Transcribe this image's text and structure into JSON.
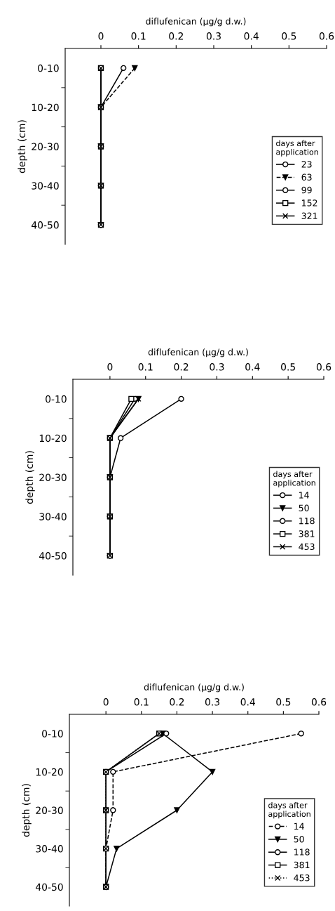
{
  "chart_data": [
    {
      "type": "line",
      "orientation": "horizontal",
      "xlabel": "diflufenican (μg/g d.w.)",
      "ylabel": "depth (cm)",
      "legend_title": "days after\napplication",
      "legend": "lower right",
      "xlim": [
        -0.095,
        0.6
      ],
      "xticks": [
        0,
        0.1,
        0.2,
        0.3,
        0.4,
        0.5,
        0.6
      ],
      "categories": [
        "0-10",
        "10-20",
        "20-30",
        "30-40",
        "40-50"
      ],
      "series": [
        {
          "name": "23",
          "color": "#000000",
          "marker": "circle",
          "line_style": "solid",
          "values": [
            0.06,
            0,
            0,
            0,
            0
          ]
        },
        {
          "name": "63",
          "color": "#000000",
          "marker": "triangle",
          "line_style": "dashed",
          "values": [
            0.09,
            0,
            0,
            0,
            0
          ]
        },
        {
          "name": "99",
          "color": "#000000",
          "marker": "circle",
          "line_style": "solid",
          "values": [
            0,
            0,
            0,
            0,
            0
          ]
        },
        {
          "name": "152",
          "color": "#000000",
          "marker": "square",
          "line_style": "solid",
          "values": [
            0,
            0,
            0,
            0,
            0
          ]
        },
        {
          "name": "321",
          "color": "#000000",
          "marker": "cross",
          "line_style": "solid",
          "values": [
            0,
            0,
            0,
            0,
            0
          ]
        }
      ]
    },
    {
      "type": "line",
      "orientation": "horizontal",
      "xlabel": "diflufenican (μg/g d.w.)",
      "ylabel": "depth (cm)",
      "legend_title": "days after\napplication",
      "legend": "lower right",
      "xlim": [
        -0.104,
        0.6
      ],
      "xticks": [
        0,
        0.1,
        0.2,
        0.3,
        0.4,
        0.5,
        0.6
      ],
      "categories": [
        "0-10",
        "10-20",
        "20-30",
        "30-40",
        "40-50"
      ],
      "series": [
        {
          "name": "14",
          "color": "#000000",
          "marker": "circle",
          "line_style": "solid",
          "values": [
            0.2,
            0.03,
            0,
            0,
            0
          ]
        },
        {
          "name": "50",
          "color": "#000000",
          "marker": "triangle",
          "line_style": "solid",
          "values": [
            0.08,
            0,
            0,
            0,
            0
          ]
        },
        {
          "name": "118",
          "color": "#000000",
          "marker": "circle",
          "line_style": "solid",
          "values": [
            0.07,
            0,
            0,
            0,
            0
          ]
        },
        {
          "name": "381",
          "color": "#000000",
          "marker": "square",
          "line_style": "solid",
          "values": [
            0.06,
            0,
            0,
            0,
            0
          ]
        },
        {
          "name": "453",
          "color": "#000000",
          "marker": "cross",
          "line_style": "solid",
          "values": [
            0.08,
            0,
            0,
            0,
            0
          ]
        }
      ]
    },
    {
      "type": "line",
      "orientation": "horizontal",
      "xlabel": "diflufenican (μg/g d.w.)",
      "ylabel": "depth (cm)",
      "legend_title": "days after\napplication",
      "legend": "lower right",
      "xlim": [
        -0.103,
        0.6
      ],
      "xticks": [
        0,
        0.1,
        0.2,
        0.3,
        0.4,
        0.5,
        0.6
      ],
      "categories": [
        "0-10",
        "10-20",
        "20-30",
        "30-40",
        "40-50"
      ],
      "series": [
        {
          "name": "14",
          "color": "#000000",
          "marker": "circle",
          "line_style": "dashed",
          "values": [
            0.55,
            0.02,
            0.02,
            0,
            0
          ]
        },
        {
          "name": "50",
          "color": "#000000",
          "marker": "triangle",
          "line_style": "solid",
          "values": [
            0.16,
            0.3,
            0.2,
            0.03,
            0
          ]
        },
        {
          "name": "118",
          "color": "#000000",
          "marker": "circle",
          "line_style": "solid",
          "values": [
            0.17,
            0,
            0,
            0,
            0
          ]
        },
        {
          "name": "381",
          "color": "#000000",
          "marker": "square",
          "line_style": "solid",
          "values": [
            0.15,
            0,
            0,
            0,
            0
          ]
        },
        {
          "name": "453",
          "color": "#000000",
          "marker": "cross",
          "line_style": "dotted",
          "values": [
            0.15,
            0,
            0,
            0,
            0
          ]
        }
      ]
    }
  ]
}
